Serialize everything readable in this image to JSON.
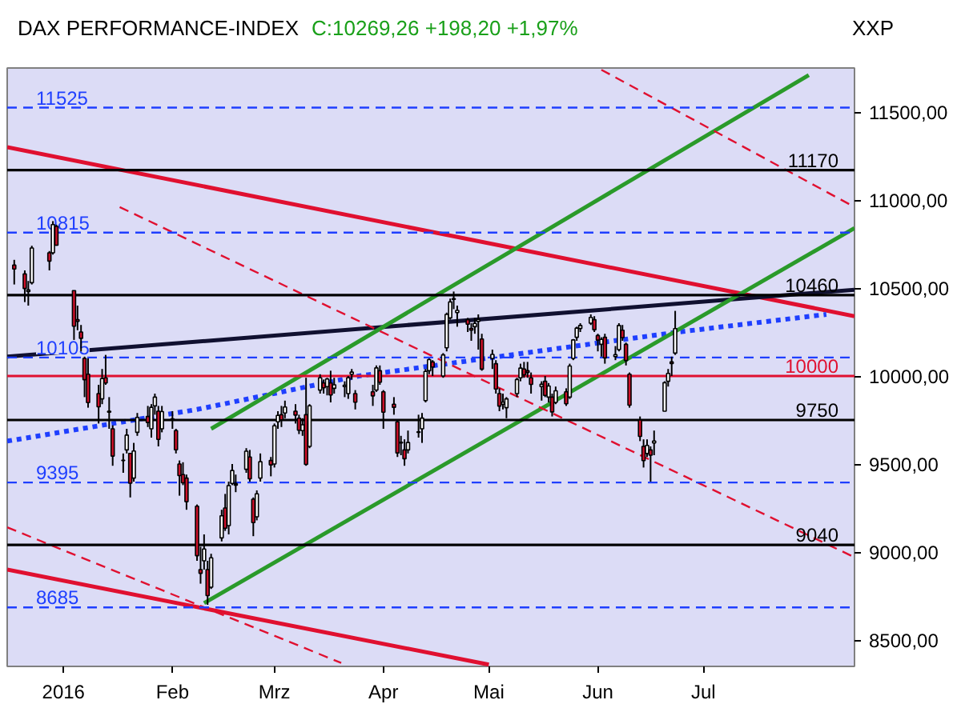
{
  "chart_data": {
    "type": "candlestick",
    "title": "DAX PERFORMANCE-INDEX",
    "subtitle": "C:10269,26 +198,20 +1,97%",
    "annotations": [
      "XXP"
    ],
    "x": [
      "2015-12-18",
      "2015-12-21",
      "2015-12-22",
      "2015-12-23",
      "2015-12-28",
      "2015-12-29",
      "2015-12-30",
      "2016-01-04",
      "2016-01-05",
      "2016-01-06",
      "2016-01-07",
      "2016-01-08",
      "2016-01-11",
      "2016-01-12",
      "2016-01-13",
      "2016-01-14",
      "2016-01-15",
      "2016-01-18",
      "2016-01-19",
      "2016-01-20",
      "2016-01-21",
      "2016-01-22",
      "2016-01-25",
      "2016-01-26",
      "2016-01-27",
      "2016-01-28",
      "2016-01-29",
      "2016-02-01",
      "2016-02-02",
      "2016-02-03",
      "2016-02-04",
      "2016-02-05",
      "2016-02-08",
      "2016-02-09",
      "2016-02-10",
      "2016-02-11",
      "2016-02-12",
      "2016-02-15",
      "2016-02-16",
      "2016-02-17",
      "2016-02-18",
      "2016-02-19",
      "2016-02-22",
      "2016-02-23",
      "2016-02-24",
      "2016-02-25",
      "2016-02-26",
      "2016-02-29",
      "2016-03-01",
      "2016-03-02",
      "2016-03-03",
      "2016-03-04",
      "2016-03-07",
      "2016-03-08",
      "2016-03-09",
      "2016-03-10",
      "2016-03-11",
      "2016-03-14",
      "2016-03-15",
      "2016-03-16",
      "2016-03-17",
      "2016-03-18",
      "2016-03-21",
      "2016-03-22",
      "2016-03-23",
      "2016-03-24",
      "2016-03-29",
      "2016-03-30",
      "2016-03-31",
      "2016-04-01",
      "2016-04-04",
      "2016-04-05",
      "2016-04-06",
      "2016-04-07",
      "2016-04-08",
      "2016-04-11",
      "2016-04-12",
      "2016-04-13",
      "2016-04-14",
      "2016-04-15",
      "2016-04-18",
      "2016-04-19",
      "2016-04-20",
      "2016-04-21",
      "2016-04-22",
      "2016-04-25",
      "2016-04-26",
      "2016-04-27",
      "2016-04-28",
      "2016-04-29",
      "2016-05-02",
      "2016-05-03",
      "2016-05-04",
      "2016-05-05",
      "2016-05-06",
      "2016-05-09",
      "2016-05-10",
      "2016-05-11",
      "2016-05-12",
      "2016-05-13",
      "2016-05-16",
      "2016-05-17",
      "2016-05-18",
      "2016-05-19",
      "2016-05-20",
      "2016-05-23",
      "2016-05-24",
      "2016-05-25",
      "2016-05-26",
      "2016-05-27",
      "2016-05-30",
      "2016-05-31",
      "2016-06-01",
      "2016-06-02",
      "2016-06-03",
      "2016-06-06",
      "2016-06-07",
      "2016-06-08",
      "2016-06-09",
      "2016-06-10",
      "2016-06-13",
      "2016-06-14",
      "2016-06-15",
      "2016-06-16",
      "2016-06-17",
      "2016-06-20",
      "2016-06-21",
      "2016-06-22",
      "2016-06-23"
    ],
    "ohlc": [
      [
        10630,
        10660,
        10520,
        10608
      ],
      [
        10580,
        10600,
        10420,
        10497
      ],
      [
        10480,
        10540,
        10400,
        10489
      ],
      [
        10530,
        10740,
        10520,
        10727
      ],
      [
        10700,
        10710,
        10600,
        10653
      ],
      [
        10700,
        10880,
        10690,
        10860
      ],
      [
        10850,
        10860,
        10740,
        10743
      ],
      [
        10485,
        10485,
        10205,
        10283
      ],
      [
        10320,
        10400,
        10260,
        10310
      ],
      [
        10250,
        10290,
        10140,
        10214
      ],
      [
        10100,
        10110,
        9880,
        9979
      ],
      [
        10010,
        10100,
        9820,
        9849
      ],
      [
        9900,
        9950,
        9730,
        9825
      ],
      [
        9870,
        10040,
        9840,
        9985
      ],
      [
        9990,
        10120,
        9950,
        9960
      ],
      [
        9800,
        9880,
        9700,
        9794
      ],
      [
        9700,
        9720,
        9490,
        9545
      ],
      [
        9520,
        9560,
        9450,
        9521
      ],
      [
        9580,
        9700,
        9560,
        9664
      ],
      [
        9560,
        9560,
        9310,
        9391
      ],
      [
        9420,
        9620,
        9400,
        9574
      ],
      [
        9680,
        9790,
        9660,
        9765
      ],
      [
        9770,
        9830,
        9710,
        9736
      ],
      [
        9700,
        9840,
        9650,
        9822
      ],
      [
        9830,
        9900,
        9780,
        9880
      ],
      [
        9800,
        9830,
        9600,
        9640
      ],
      [
        9700,
        9830,
        9680,
        9798
      ],
      [
        9750,
        9800,
        9700,
        9757
      ],
      [
        9690,
        9700,
        9560,
        9581
      ],
      [
        9500,
        9520,
        9320,
        9434
      ],
      [
        9440,
        9510,
        9380,
        9393
      ],
      [
        9420,
        9440,
        9240,
        9286
      ],
      [
        9260,
        9270,
        8950,
        8979
      ],
      [
        8900,
        9030,
        8820,
        8879
      ],
      [
        8950,
        9100,
        8900,
        9017
      ],
      [
        8900,
        8950,
        8700,
        8752
      ],
      [
        8800,
        8990,
        8790,
        8967
      ],
      [
        9080,
        9240,
        9060,
        9206
      ],
      [
        9250,
        9330,
        9120,
        9135
      ],
      [
        9150,
        9400,
        9100,
        9377
      ],
      [
        9390,
        9500,
        9380,
        9463
      ],
      [
        9380,
        9440,
        9340,
        9388
      ],
      [
        9470,
        9590,
        9450,
        9573
      ],
      [
        9540,
        9580,
        9400,
        9416
      ],
      [
        9300,
        9310,
        9090,
        9167
      ],
      [
        9200,
        9350,
        9180,
        9331
      ],
      [
        9420,
        9560,
        9400,
        9513
      ],
      [
        9520,
        9540,
        9430,
        9495
      ],
      [
        9500,
        9730,
        9480,
        9717
      ],
      [
        9740,
        9800,
        9700,
        9776
      ],
      [
        9780,
        9830,
        9710,
        9751
      ],
      [
        9790,
        9860,
        9760,
        9824
      ],
      [
        9800,
        9840,
        9730,
        9778
      ],
      [
        9760,
        9780,
        9670,
        9692
      ],
      [
        9690,
        9760,
        9660,
        9723
      ],
      [
        9780,
        9990,
        9490,
        9498
      ],
      [
        9600,
        9840,
        9590,
        9831
      ],
      [
        9920,
        10010,
        9900,
        9990
      ],
      [
        9960,
        9980,
        9900,
        9933
      ],
      [
        9940,
        9990,
        9890,
        9983
      ],
      [
        9960,
        10030,
        9850,
        9892
      ],
      [
        9930,
        9990,
        9900,
        9950
      ],
      [
        9940,
        9970,
        9880,
        9948
      ],
      [
        9900,
        10000,
        9870,
        9990
      ],
      [
        10010,
        10040,
        9980,
        10022
      ],
      [
        9900,
        9920,
        9810,
        9851
      ],
      [
        9910,
        9950,
        9830,
        9887
      ],
      [
        9920,
        10060,
        9910,
        10046
      ],
      [
        10030,
        10060,
        9950,
        9965
      ],
      [
        9910,
        9920,
        9700,
        9794
      ],
      [
        9840,
        9880,
        9780,
        9822
      ],
      [
        9740,
        9750,
        9540,
        9563
      ],
      [
        9620,
        9660,
        9550,
        9624
      ],
      [
        9580,
        9640,
        9490,
        9530
      ],
      [
        9580,
        9690,
        9560,
        9622
      ],
      [
        9680,
        9780,
        9650,
        9683
      ],
      [
        9700,
        9790,
        9620,
        9761
      ],
      [
        9860,
        10040,
        9850,
        10026
      ],
      [
        10030,
        10100,
        10010,
        10093
      ],
      [
        10080,
        10090,
        10000,
        10051
      ],
      [
        10000,
        10130,
        9990,
        10120
      ],
      [
        10160,
        10360,
        10140,
        10350
      ],
      [
        10330,
        10440,
        10320,
        10421
      ],
      [
        10440,
        10480,
        10380,
        10435
      ],
      [
        10360,
        10400,
        10280,
        10373
      ],
      [
        10320,
        10330,
        10250,
        10294
      ],
      [
        10270,
        10300,
        10200,
        10260
      ],
      [
        10280,
        10330,
        10240,
        10299
      ],
      [
        10310,
        10350,
        10150,
        10321
      ],
      [
        10210,
        10240,
        10030,
        10039
      ],
      [
        10100,
        10150,
        10040,
        10123
      ],
      [
        10070,
        10090,
        9900,
        9926
      ],
      [
        9900,
        9930,
        9800,
        9829
      ],
      [
        9840,
        9900,
        9810,
        9851
      ],
      [
        9820,
        9880,
        9760,
        9870
      ],
      [
        9900,
        9990,
        9880,
        9980
      ],
      [
        9990,
        10070,
        9970,
        10045
      ],
      [
        10040,
        10080,
        9990,
        10007
      ],
      [
        10030,
        10080,
        9990,
        10020
      ],
      [
        9990,
        10020,
        9900,
        9952
      ],
      [
        9940,
        9970,
        9860,
        9953
      ],
      [
        9970,
        10000,
        9880,
        9890
      ],
      [
        9880,
        9960,
        9850,
        9943
      ],
      [
        9880,
        9900,
        9770,
        9796
      ],
      [
        9850,
        9940,
        9840,
        9916
      ],
      [
        9910,
        9930,
        9830,
        9842
      ],
      [
        9880,
        10070,
        9870,
        10057
      ],
      [
        10100,
        10210,
        10090,
        10205
      ],
      [
        10220,
        10280,
        10200,
        10272
      ],
      [
        10270,
        10300,
        10250,
        10287
      ],
      [
        10300,
        10350,
        10290,
        10333
      ],
      [
        10320,
        10340,
        10250,
        10263
      ],
      [
        10230,
        10240,
        10140,
        10204
      ],
      [
        10180,
        10220,
        10110,
        10208
      ],
      [
        10220,
        10240,
        10070,
        10103
      ],
      [
        10110,
        10170,
        10090,
        10121
      ],
      [
        10150,
        10300,
        10140,
        10287
      ],
      [
        10260,
        10290,
        10200,
        10218
      ],
      [
        10180,
        10190,
        10060,
        10088
      ],
      [
        10010,
        10020,
        9820,
        9834
      ],
      [
        9750,
        9770,
        9630,
        9657
      ],
      [
        9600,
        9640,
        9480,
        9519
      ],
      [
        9560,
        9640,
        9540,
        9606
      ],
      [
        9580,
        9600,
        9400,
        9550
      ],
      [
        9620,
        9690,
        9550,
        9631
      ],
      [
        9800,
        9970,
        9800,
        9962
      ],
      [
        9970,
        10040,
        9940,
        10015
      ],
      [
        10080,
        10110,
        10000,
        10071
      ],
      [
        10130,
        10370,
        10120,
        10269
      ]
    ],
    "series": [
      {
        "type": "line",
        "color": "#e01030",
        "line_style": "solid",
        "x": [
          "2015-12-16",
          "2016-08-13"
        ],
        "values": [
          11300,
          10340
        ]
      },
      {
        "type": "line",
        "color": "#e01030",
        "line_style": "solid",
        "x": [
          "2015-12-16",
          "2016-05-01"
        ],
        "values": [
          8900,
          8360
        ]
      },
      {
        "type": "line",
        "color": "#101030",
        "line_style": "solid",
        "x": [
          "2015-12-16",
          "2016-08-13"
        ],
        "values": [
          10110,
          10490
        ]
      },
      {
        "type": "line",
        "color": "#1f3fff",
        "line_style": "dotted",
        "x": [
          "2015-12-16",
          "2016-02-08",
          "2016-03-25",
          "2016-05-11",
          "2016-06-24",
          "2016-08-05"
        ],
        "values": [
          9630,
          9810,
          10000,
          10130,
          10250,
          10350
        ]
      },
      {
        "type": "line",
        "color": "#2a9a2a",
        "line_style": "solid",
        "x": [
          "2016-02-10",
          "2016-08-13"
        ],
        "values": [
          8710,
          10840
        ]
      },
      {
        "type": "line",
        "color": "#2a9a2a",
        "line_style": "solid",
        "x": [
          "2016-02-12",
          "2016-07-31"
        ],
        "values": [
          9700,
          11710
        ]
      },
      {
        "type": "line",
        "color": "#e01030",
        "line_style": "dashed",
        "x": [
          "2016-06-02",
          "2016-08-13"
        ],
        "values": [
          11740,
          10960
        ]
      },
      {
        "type": "line",
        "color": "#e01030",
        "line_style": "dashed",
        "x": [
          "2016-01-17",
          "2016-08-13"
        ],
        "values": [
          10960,
          8970
        ]
      },
      {
        "type": "line",
        "color": "#e01030",
        "line_style": "dashed",
        "x": [
          "2015-12-16",
          "2016-03-20"
        ],
        "values": [
          9140,
          8370
        ]
      }
    ],
    "ref_lines": [
      {
        "axis": "y",
        "value": 11525,
        "label": "11525",
        "color": "#1f3fff",
        "line_style": "dashed"
      },
      {
        "axis": "y",
        "value": 11170,
        "label": "11170",
        "color": "#000000",
        "line_style": "solid"
      },
      {
        "axis": "y",
        "value": 10815,
        "label": "10815",
        "color": "#1f3fff",
        "line_style": "dashed"
      },
      {
        "axis": "y",
        "value": 10460,
        "label": "10460",
        "color": "#000000",
        "line_style": "solid"
      },
      {
        "axis": "y",
        "value": 10105,
        "label": "10105",
        "color": "#1f3fff",
        "line_style": "dashed"
      },
      {
        "axis": "y",
        "value": 10000,
        "label": "10000",
        "color": "#e01030",
        "line_style": "solid"
      },
      {
        "axis": "y",
        "value": 9750,
        "label": "9750",
        "color": "#000000",
        "line_style": "solid"
      },
      {
        "axis": "y",
        "value": 9395,
        "label": "9395",
        "color": "#1f3fff",
        "line_style": "dashed"
      },
      {
        "axis": "y",
        "value": 9040,
        "label": "9040",
        "color": "#000000",
        "line_style": "solid"
      },
      {
        "axis": "y",
        "value": 8685,
        "label": "8685",
        "color": "#1f3fff",
        "line_style": "dashed"
      }
    ],
    "xlim": [
      "2015-12-16",
      "2016-08-13"
    ],
    "xticks": [
      {
        "value": "2016-01-01",
        "label": "2016"
      },
      {
        "value": "2016-02-01",
        "label": "Feb"
      },
      {
        "value": "2016-03-01",
        "label": "Mrz"
      },
      {
        "value": "2016-04-01",
        "label": "Apr"
      },
      {
        "value": "2016-05-01",
        "label": "Mai"
      },
      {
        "value": "2016-06-01",
        "label": "Jun"
      },
      {
        "value": "2016-07-01",
        "label": "Jul"
      }
    ],
    "ylim": [
      8350,
      11750
    ],
    "yticks": [
      {
        "value": 8500,
        "label": "8500,00"
      },
      {
        "value": 9000,
        "label": "9000,00"
      },
      {
        "value": 9500,
        "label": "9500,00"
      },
      {
        "value": 10000,
        "label": "10000,00"
      },
      {
        "value": 10500,
        "label": "10500,00"
      },
      {
        "value": 11000,
        "label": "11000,00"
      },
      {
        "value": 11500,
        "label": "11500,00"
      }
    ]
  }
}
